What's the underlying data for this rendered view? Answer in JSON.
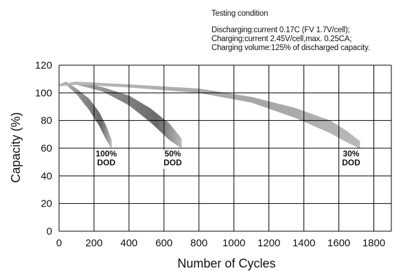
{
  "testing_condition": {
    "title": "Testing condition",
    "lines": [
      "Discharging:current 0.17C (FV 1.7V/cell);",
      "Charging:current 2.45V/cell,max. 0.25CA;",
      "Charging volume:125% of discharged  capacity."
    ]
  },
  "chart_data": {
    "type": "area",
    "title": "",
    "xlabel": "Number of Cycles",
    "ylabel": "Capacity (%)",
    "xlim": [
      0,
      1900
    ],
    "ylim": [
      0,
      120
    ],
    "xticks": [
      0,
      200,
      400,
      600,
      800,
      1000,
      1200,
      1400,
      1600,
      1800
    ],
    "yticks": [
      0,
      20,
      40,
      60,
      80,
      100,
      120
    ],
    "grid": true,
    "colors": {
      "band_light": "#b9b9b9",
      "band_dark": "#6a6a6a",
      "grid": "#000000"
    },
    "series": [
      {
        "name": "100% DOD",
        "label_lines": [
          "100%",
          "DOD"
        ],
        "band": [
          {
            "x": 0,
            "low": 105,
            "high": 106
          },
          {
            "x": 40,
            "low": 106,
            "high": 108
          },
          {
            "x": 100,
            "low": 99,
            "high": 103
          },
          {
            "x": 170,
            "low": 88,
            "high": 96
          },
          {
            "x": 230,
            "low": 76,
            "high": 86
          },
          {
            "x": 270,
            "low": 66,
            "high": 76
          },
          {
            "x": 300,
            "low": 60,
            "high": 66
          }
        ]
      },
      {
        "name": "50% DOD",
        "label_lines": [
          "50%",
          "DOD"
        ],
        "band": [
          {
            "x": 0,
            "low": 105,
            "high": 106
          },
          {
            "x": 100,
            "low": 106,
            "high": 108
          },
          {
            "x": 250,
            "low": 101,
            "high": 104
          },
          {
            "x": 400,
            "low": 91,
            "high": 98
          },
          {
            "x": 520,
            "low": 79,
            "high": 89
          },
          {
            "x": 630,
            "low": 66,
            "high": 78
          },
          {
            "x": 700,
            "low": 60,
            "high": 67
          }
        ]
      },
      {
        "name": "30% DOD",
        "label_lines": [
          "30%",
          "DOD"
        ],
        "band": [
          {
            "x": 0,
            "low": 105,
            "high": 106
          },
          {
            "x": 100,
            "low": 106,
            "high": 108
          },
          {
            "x": 400,
            "low": 104,
            "high": 106
          },
          {
            "x": 800,
            "low": 100,
            "high": 103
          },
          {
            "x": 1100,
            "low": 93,
            "high": 97
          },
          {
            "x": 1350,
            "low": 82,
            "high": 89
          },
          {
            "x": 1550,
            "low": 71,
            "high": 80
          },
          {
            "x": 1650,
            "low": 64,
            "high": 72
          },
          {
            "x": 1720,
            "low": 60,
            "high": 65
          }
        ]
      }
    ],
    "labels": [
      {
        "series": "100% DOD",
        "x": 270,
        "y": 54
      },
      {
        "series": "50% DOD",
        "x": 650,
        "y": 54
      },
      {
        "series": "30% DOD",
        "x": 1670,
        "y": 54
      }
    ]
  }
}
